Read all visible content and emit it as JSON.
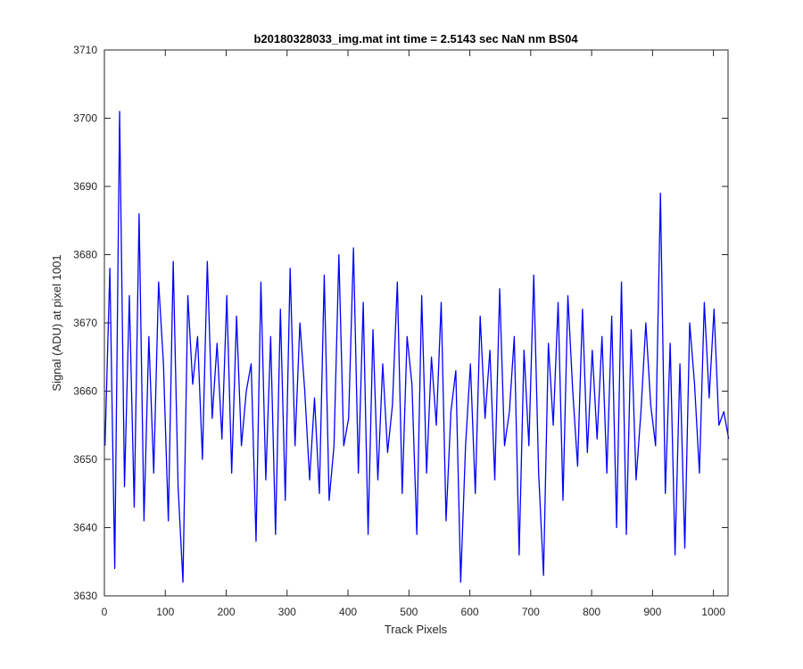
{
  "chart_data": {
    "type": "line",
    "title": "b20180328033_img.mat int time = 2.5143 sec  NaN nm BS04",
    "xlabel": "Track Pixels",
    "ylabel": "Signal (ADU) at pixel 1001",
    "xlim": [
      0,
      1024
    ],
    "ylim": [
      3630,
      3710
    ],
    "xticks": [
      0,
      100,
      200,
      300,
      400,
      500,
      600,
      700,
      800,
      900,
      1000
    ],
    "yticks": [
      3630,
      3640,
      3650,
      3660,
      3670,
      3680,
      3690,
      3700,
      3710
    ],
    "grid": false,
    "series_color": "#0000ff",
    "series": [
      {
        "x_start": 1,
        "x_step": 8,
        "values": [
          3652,
          3678,
          3634,
          3701,
          3646,
          3674,
          3643,
          3686,
          3641,
          3668,
          3648,
          3676,
          3664,
          3641,
          3679,
          3646,
          3632,
          3674,
          3661,
          3668,
          3650,
          3679,
          3656,
          3667,
          3653,
          3674,
          3648,
          3671,
          3652,
          3660,
          3664,
          3638,
          3676,
          3647,
          3668,
          3639,
          3672,
          3644,
          3678,
          3652,
          3670,
          3660,
          3647,
          3659,
          3645,
          3677,
          3644,
          3652,
          3680,
          3652,
          3656,
          3681,
          3648,
          3673,
          3639,
          3669,
          3647,
          3664,
          3651,
          3658,
          3676,
          3645,
          3668,
          3661,
          3639,
          3674,
          3648,
          3665,
          3655,
          3673,
          3641,
          3657,
          3663,
          3632,
          3652,
          3664,
          3645,
          3671,
          3656,
          3666,
          3647,
          3675,
          3652,
          3657,
          3668,
          3636,
          3666,
          3652,
          3677,
          3648,
          3633,
          3667,
          3655,
          3673,
          3644,
          3674,
          3660,
          3649,
          3672,
          3651,
          3666,
          3653,
          3668,
          3648,
          3671,
          3640,
          3676,
          3639,
          3669,
          3647,
          3657,
          3670,
          3658,
          3652,
          3689,
          3645,
          3667,
          3636,
          3664,
          3637,
          3670,
          3661,
          3648,
          3673,
          3659,
          3672,
          3655,
          3657,
          3653
        ]
      }
    ]
  }
}
